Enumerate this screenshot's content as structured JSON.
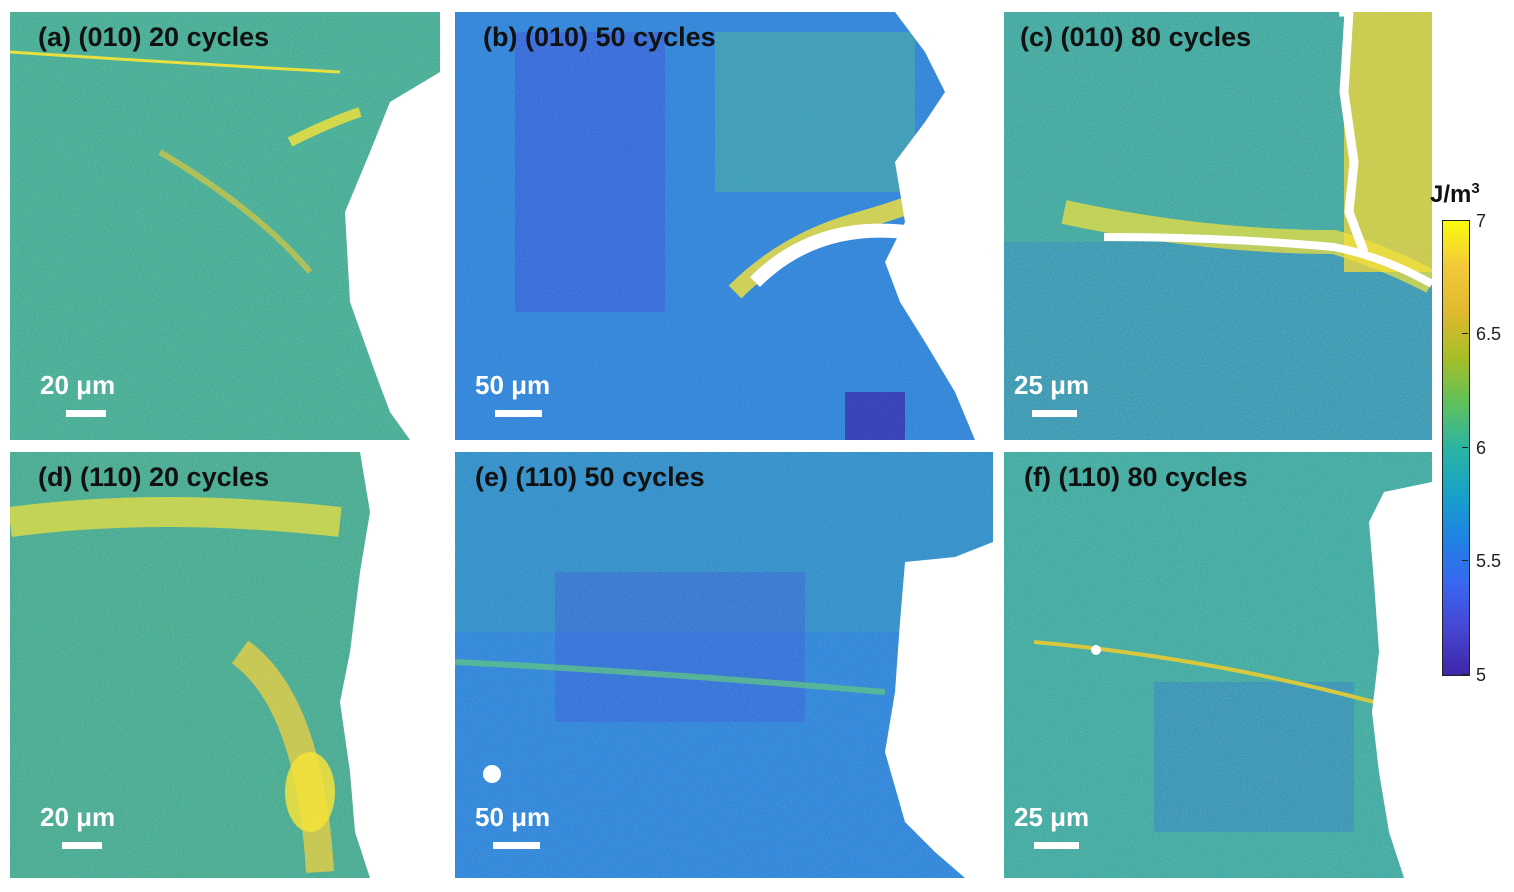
{
  "panels": [
    {
      "id": "a",
      "title": "(a) (010) 20 cycles",
      "scale_label": "20 μm"
    },
    {
      "id": "b",
      "title": "(b) (010) 50 cycles",
      "scale_label": "50 μm"
    },
    {
      "id": "c",
      "title": "(c) (010) 80 cycles",
      "scale_label": "25 μm"
    },
    {
      "id": "d",
      "title": "(d) (110) 20 cycles",
      "scale_label": "20 μm"
    },
    {
      "id": "e",
      "title": "(e) (110) 50 cycles",
      "scale_label": "50 μm"
    },
    {
      "id": "f",
      "title": "(f) (110) 80 cycles",
      "scale_label": "25 μm"
    }
  ],
  "colorbar": {
    "unit_main": "J/m",
    "unit_sup": "3",
    "ticks": [
      "7",
      "6.5",
      "6",
      "5.5",
      "5"
    ],
    "colors": {
      "high": "#f9fb0e",
      "mid": "#17a2c8",
      "low": "#3e26a8",
      "saturated": "#ffffff"
    }
  }
}
